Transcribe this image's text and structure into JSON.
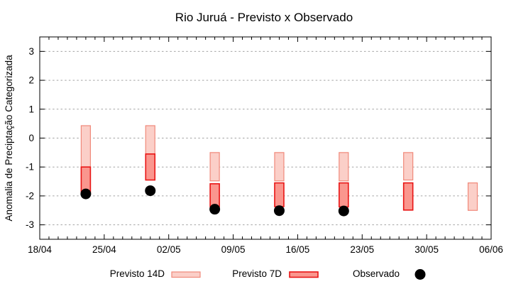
{
  "chart_data": {
    "type": "bar",
    "title": "Rio Juruá - Previsto x Observado",
    "ylabel": "Anomalia de Preciptação Categorizada",
    "xlabel": "",
    "ylim": [
      -3.5,
      3.5
    ],
    "yticks": [
      -3,
      -2,
      -1,
      0,
      1,
      2,
      3
    ],
    "ytick_labels": [
      "-3",
      "-2",
      "-1",
      "0",
      "1",
      "2",
      "3"
    ],
    "x_range_days": 49,
    "xtick_days": [
      0,
      7,
      14,
      21,
      28,
      35,
      42,
      49
    ],
    "xtick_labels": [
      "18/04",
      "25/04",
      "02/05",
      "09/05",
      "16/05",
      "23/05",
      "30/05",
      "06/06"
    ],
    "grid": "dashed horizontal at integer y values",
    "legend_position": "bottom",
    "groups": [
      {
        "date": "23/04",
        "day": 5,
        "previsto14d": [
          0.43,
          -1.0
        ],
        "previsto7d": [
          -1.0,
          -1.87
        ],
        "observado": -1.93
      },
      {
        "date": "30/04",
        "day": 12,
        "previsto14d": [
          0.43,
          -0.55
        ],
        "previsto7d": [
          -0.55,
          -1.45
        ],
        "observado": -1.82
      },
      {
        "date": "07/05",
        "day": 19,
        "previsto14d": [
          -0.5,
          -1.48
        ],
        "previsto7d": [
          -1.58,
          -2.37
        ],
        "observado": -2.46
      },
      {
        "date": "14/05",
        "day": 26,
        "previsto14d": [
          -0.5,
          -1.48
        ],
        "previsto7d": [
          -1.55,
          -2.37
        ],
        "observado": -2.51
      },
      {
        "date": "21/05",
        "day": 33,
        "previsto14d": [
          -0.5,
          -1.48
        ],
        "previsto7d": [
          -1.55,
          -2.38
        ],
        "observado": -2.52
      },
      {
        "date": "28/05",
        "day": 40,
        "previsto14d": [
          -0.5,
          -1.45
        ],
        "previsto7d": [
          -1.55,
          -2.49
        ],
        "observado": null
      },
      {
        "date": "04/06",
        "day": 47,
        "previsto14d": [
          -1.55,
          -2.5
        ],
        "previsto7d": null,
        "observado": null
      }
    ],
    "legend": [
      {
        "label": "Previsto 14D",
        "type": "box",
        "fill": "#fbcfc8",
        "stroke": "#f0897a"
      },
      {
        "label": "Previsto 7D",
        "type": "box",
        "fill": "#fa968e",
        "stroke": "#e91414"
      },
      {
        "label": "Observado",
        "type": "dot",
        "fill": "#000000"
      }
    ],
    "colors": {
      "background": "#ffffff",
      "plot_border": "#000000",
      "gridline": "#a3a3a3",
      "previsto14d_fill": "#fbcfc8",
      "previsto14d_stroke": "#f0897a",
      "previsto7d_fill": "#fa968e",
      "previsto7d_stroke": "#e91414",
      "observado": "#000000"
    }
  }
}
